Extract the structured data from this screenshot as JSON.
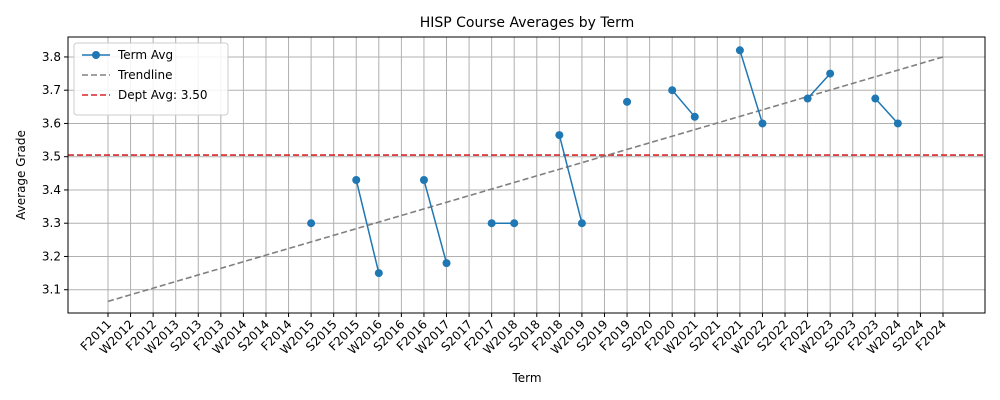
{
  "chart_data": {
    "type": "line",
    "title": "HISP Course Averages by Term",
    "xlabel": "Term",
    "ylabel": "Average Grade",
    "categories": [
      "F2011",
      "W2012",
      "F2012",
      "W2013",
      "S2013",
      "F2013",
      "W2014",
      "S2014",
      "F2014",
      "W2015",
      "S2015",
      "F2015",
      "W2016",
      "S2016",
      "F2016",
      "W2017",
      "S2017",
      "F2017",
      "W2018",
      "S2018",
      "F2018",
      "W2019",
      "S2019",
      "F2019",
      "S2020",
      "F2020",
      "W2021",
      "S2021",
      "F2021",
      "W2022",
      "S2022",
      "F2022",
      "W2023",
      "S2023",
      "F2023",
      "W2024",
      "S2024",
      "F2024"
    ],
    "ylim": [
      3.03,
      3.86
    ],
    "yticks": [
      "3.1",
      "3.2",
      "3.3",
      "3.4",
      "3.5",
      "3.6",
      "3.7",
      "3.8"
    ],
    "grid": true,
    "legend_position": "top-left",
    "series": [
      {
        "name": "Term Avg",
        "color": "#1f77b4",
        "values": [
          null,
          null,
          null,
          null,
          null,
          null,
          null,
          null,
          null,
          3.3,
          null,
          3.43,
          3.15,
          null,
          3.43,
          3.18,
          null,
          3.3,
          3.3,
          null,
          3.565,
          3.3,
          null,
          3.665,
          null,
          3.7,
          3.62,
          null,
          3.82,
          3.6,
          null,
          3.675,
          3.75,
          null,
          3.675,
          3.6,
          null,
          null
        ]
      }
    ],
    "trendline": {
      "name": "Trendline",
      "color": "#808080",
      "start": {
        "x": "F2011",
        "y": 3.065
      },
      "end": {
        "x": "F2024",
        "y": 3.8
      }
    },
    "reference_line": {
      "name": "Dept Avg: 3.50",
      "value": 3.505,
      "color": "#d62728"
    }
  }
}
